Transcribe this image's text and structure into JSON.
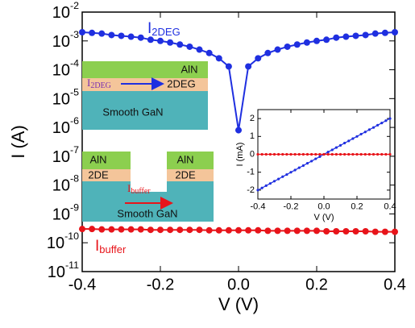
{
  "chart_data": [
    {
      "type": "line",
      "x_label": "V (V)",
      "y_label": "I (A)",
      "log_y": true,
      "x": [
        -0.4,
        -0.375,
        -0.35,
        -0.325,
        -0.3,
        -0.275,
        -0.25,
        -0.225,
        -0.2,
        -0.175,
        -0.15,
        -0.125,
        -0.1,
        -0.075,
        -0.05,
        -0.025,
        0,
        0.025,
        0.05,
        0.075,
        0.1,
        0.125,
        0.15,
        0.175,
        0.2,
        0.225,
        0.25,
        0.275,
        0.3,
        0.325,
        0.35,
        0.375,
        0.4
      ],
      "series": [
        {
          "label": {
            "text": "I",
            "subscript": "2DEG"
          },
          "color": "#1f2fe0",
          "values": [
            0.002,
            0.0019,
            0.0018,
            0.0016,
            0.0015,
            0.0014,
            0.0013,
            0.0011,
            0.001,
            0.00088,
            0.00075,
            0.00063,
            0.0005,
            0.00038,
            0.00025,
            0.00013,
            8e-07,
            0.00013,
            0.00025,
            0.00038,
            0.0005,
            0.00063,
            0.00075,
            0.00088,
            0.001,
            0.0011,
            0.0013,
            0.0014,
            0.0015,
            0.0016,
            0.0018,
            0.0019,
            0.002
          ]
        },
        {
          "label": {
            "text": "I",
            "subscript": "buffer"
          },
          "color": "#e8141a",
          "values": [
            3e-10,
            3e-10,
            2.9e-10,
            2.9e-10,
            2.9e-10,
            2.9e-10,
            2.9e-10,
            2.8e-10,
            2.8e-10,
            2.8e-10,
            2.8e-10,
            2.8e-10,
            2.8e-10,
            2.7e-10,
            2.7e-10,
            2.7e-10,
            2.7e-10,
            2.7e-10,
            2.7e-10,
            2.6e-10,
            2.6e-10,
            2.6e-10,
            2.6e-10,
            2.6e-10,
            2.6e-10,
            2.5e-10,
            2.5e-10,
            2.5e-10,
            2.5e-10,
            2.5e-10,
            2.4e-10,
            2.4e-10,
            2.4e-10
          ]
        }
      ],
      "xlim": [
        -0.4,
        0.4
      ],
      "xticks": [
        -0.4,
        -0.2,
        {
          "value": 0,
          "label": "0.0"
        },
        0.2,
        0.4
      ],
      "ylim": [
        1e-11,
        0.01
      ],
      "yticks": [
        {
          "value": 1e-11,
          "label": "10",
          "exponent": "-11"
        },
        {
          "value": 1e-10,
          "label": "10",
          "exponent": "-10"
        },
        {
          "value": 1e-09,
          "label": "10",
          "exponent": "-9"
        },
        {
          "value": 1e-08,
          "label": "10",
          "exponent": "-8"
        },
        {
          "value": 1e-07,
          "label": "10",
          "exponent": "-7"
        },
        {
          "value": 1e-06,
          "label": "10",
          "exponent": "-6"
        },
        {
          "value": 1e-05,
          "label": "10",
          "exponent": "-5"
        },
        {
          "value": 0.0001,
          "label": "10",
          "exponent": "-4"
        },
        {
          "value": 0.001,
          "label": "10",
          "exponent": "-3"
        },
        {
          "value": 0.01,
          "label": "10",
          "exponent": "-2"
        }
      ]
    },
    {
      "type": "line",
      "x_label": "V (V)",
      "y_label": "I (mA)",
      "log_y": false,
      "x": [
        -0.4,
        -0.375,
        -0.35,
        -0.325,
        -0.3,
        -0.275,
        -0.25,
        -0.225,
        -0.2,
        -0.175,
        -0.15,
        -0.125,
        -0.1,
        -0.075,
        -0.05,
        -0.025,
        0,
        0.025,
        0.05,
        0.075,
        0.1,
        0.125,
        0.15,
        0.175,
        0.2,
        0.225,
        0.25,
        0.275,
        0.3,
        0.325,
        0.35,
        0.375,
        0.4
      ],
      "series": [
        {
          "color": "#1f2fe0",
          "values": [
            -2.0,
            -1.88,
            -1.75,
            -1.63,
            -1.5,
            -1.38,
            -1.25,
            -1.13,
            -1.0,
            -0.88,
            -0.75,
            -0.63,
            -0.5,
            -0.38,
            -0.25,
            -0.13,
            0,
            0.13,
            0.25,
            0.38,
            0.5,
            0.63,
            0.75,
            0.88,
            1.0,
            1.13,
            1.25,
            1.38,
            1.5,
            1.63,
            1.75,
            1.88,
            2.0
          ]
        },
        {
          "color": "#e8141a",
          "values": [
            0,
            0,
            0,
            0,
            0,
            0,
            0,
            0,
            0,
            0,
            0,
            0,
            0,
            0,
            0,
            0,
            0,
            0,
            0,
            0,
            0,
            0,
            0,
            0,
            0,
            0,
            0,
            0,
            0,
            0,
            0,
            0,
            0
          ]
        }
      ],
      "xlim": [
        -0.4,
        0.4
      ],
      "xticks": [
        -0.4,
        -0.2,
        {
          "value": 0,
          "label": "0.0"
        },
        0.2,
        0.4
      ],
      "ylim": [
        -2.5,
        2.5
      ],
      "yticks": [
        -2,
        -1,
        0,
        1,
        2
      ]
    }
  ],
  "diagrams": [
    {
      "top_layer": "AlN",
      "channel_label": {
        "text": "I",
        "subscript": "2DEG"
      },
      "channel": "2DEG",
      "substrate": "Smooth GaN"
    },
    {
      "left_top": "AlN",
      "left_channel": "2DE",
      "right_top": "AlN",
      "right_channel": "2DE",
      "current": {
        "text": "I",
        "subscript": "buffer"
      },
      "substrate": "Smooth GaN"
    }
  ]
}
